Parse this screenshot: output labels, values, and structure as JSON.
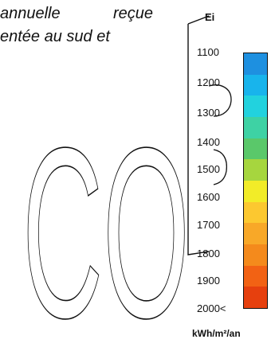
{
  "paragraph": {
    "line1": "annuelle  reçue",
    "line2": "entée au sud et"
  },
  "legend": {
    "header": "Ei",
    "unit": "kWh/m²/an",
    "ticks": [
      "1100",
      "1200",
      "1300",
      "1400",
      "1500",
      "1600",
      "1700",
      "1800",
      "1900",
      "2000<"
    ],
    "band_colors": [
      "#1e90e0",
      "#18b4ec",
      "#22d2de",
      "#3ed2a4",
      "#5ac86a",
      "#a6d63e",
      "#f2ec28",
      "#fcc830",
      "#f8a828",
      "#f48a1c",
      "#f26214",
      "#e6400e"
    ]
  },
  "watermark": {
    "text": "CO",
    "stroke_color": "#111111"
  }
}
